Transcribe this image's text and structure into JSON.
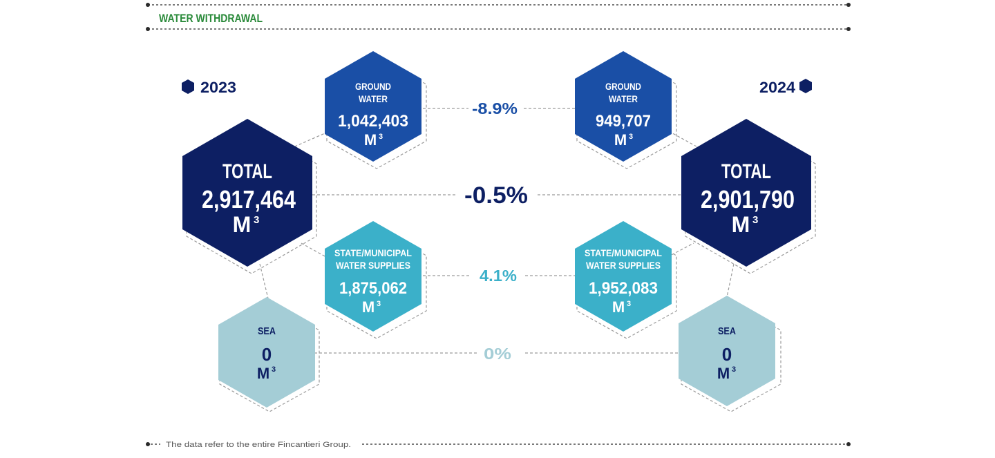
{
  "header": {
    "title": "WATER WITHDRAWAL"
  },
  "footer": {
    "note": "The data refer to the entire Fincantieri Group."
  },
  "colors": {
    "navy": "#0d1f63",
    "blue": "#1a4fa6",
    "teal": "#3bb0c9",
    "pale": "#a4cdd6",
    "title_green": "#2a8a3a"
  },
  "years": {
    "left": "2023",
    "right": "2024"
  },
  "left": {
    "total": {
      "label": "TOTAL",
      "value": "2,917,464",
      "unit": "M",
      "sup": "3"
    },
    "ground": {
      "label1": "GROUND",
      "label2": "WATER",
      "value": "1,042,403",
      "unit": "M",
      "sup": "3"
    },
    "state": {
      "label1": "STATE/MUNICIPAL",
      "label2": "WATER SUPPLIES",
      "value": "1,875,062",
      "unit": "M",
      "sup": "3"
    },
    "sea": {
      "label": "SEA",
      "value": "0",
      "unit": "M",
      "sup": "3"
    }
  },
  "right": {
    "total": {
      "label": "TOTAL",
      "value": "2,901,790",
      "unit": "M",
      "sup": "3"
    },
    "ground": {
      "label1": "GROUND",
      "label2": "WATER",
      "value": "949,707",
      "unit": "M",
      "sup": "3"
    },
    "state": {
      "label1": "STATE/MUNICIPAL",
      "label2": "WATER SUPPLIES",
      "value": "1,952,083",
      "unit": "M",
      "sup": "3"
    },
    "sea": {
      "label": "SEA",
      "value": "0",
      "unit": "M",
      "sup": "3"
    }
  },
  "changes": {
    "ground": "-8.9%",
    "total": "-0.5%",
    "state": "4.1%",
    "sea": "0%"
  }
}
